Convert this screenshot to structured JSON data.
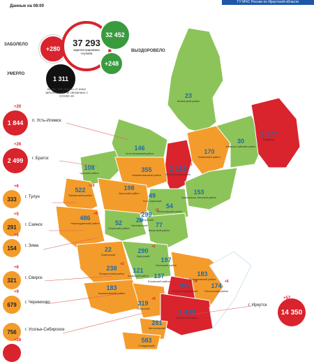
{
  "header": {
    "date_line": "Данные на 08:00",
    "ministry": "ГУ МЧС России по Иркутской области"
  },
  "summary": {
    "infected_label": "ЗАБОЛЕЛО",
    "infected_delta": "+280",
    "total": "37 293",
    "total_caption": "зарегистрировано случаев",
    "recovered_label": "ВЫЗДОРОВЕЛО",
    "recovered_total": "32 452",
    "recovered_delta": "+248",
    "died_label": "УМЕРЛО",
    "died_total": "1 311",
    "died_note": "из них 165 умерло от иных заболеваний, не связанных с COVID-19"
  },
  "side": [
    {
      "delta": "+20",
      "value": "1 844",
      "city": "п. Усть-Илимск",
      "color": "#d9232d"
    },
    {
      "delta": "+26",
      "value": "2 499",
      "city": "г. Братск",
      "color": "#d9232d"
    },
    {
      "delta": "+6",
      "value": "333",
      "city": "г. Тулун",
      "color": "#f39c2b"
    },
    {
      "delta": "+5",
      "value": "291",
      "city": "г. Саянск",
      "color": "#f39c2b"
    },
    {
      "delta": "+6",
      "value": "154",
      "city": "г. Зима",
      "color": "#f39c2b"
    },
    {
      "delta": "+6",
      "value": "321",
      "city": "г. Свирск",
      "color": "#f39c2b"
    },
    {
      "delta": "+9",
      "value": "679",
      "city": "г. Черемхово",
      "color": "#f39c2b"
    },
    {
      "delta": "",
      "value": "756",
      "city": "г. Усолье-Сибирское",
      "color": "#f39c2b"
    },
    {
      "delta": "+28",
      "value": "",
      "city": "",
      "color": "#d9232d"
    }
  ],
  "irkutsk": {
    "delta": "+57",
    "value": "14 350",
    "city": "г. Иркутск"
  },
  "regions": [
    {
      "value": "23",
      "name": "Катангский район"
    },
    {
      "value": "1 177",
      "name": "Бодайбо",
      "delta": "+18"
    },
    {
      "value": "146",
      "name": "Усть-Илимский район"
    },
    {
      "value": "2 186",
      "name": "Усть-Кутский район",
      "delta": "+13"
    },
    {
      "value": "170",
      "name": "Киренский район"
    },
    {
      "value": "30",
      "name": "Мамско-Чуйский район"
    },
    {
      "value": "108",
      "name": "Чунский район"
    },
    {
      "value": "355",
      "name": "Нижнеилимский район"
    },
    {
      "value": "153",
      "name": "Казачинско-Ленский район"
    },
    {
      "value": "522",
      "name": "Тайшетский район",
      "delta": "+10"
    },
    {
      "value": "198",
      "name": "Братский район"
    },
    {
      "value": "49",
      "name": "Усть-Удинский"
    },
    {
      "value": "54",
      "name": "Жигаловский район"
    },
    {
      "value": "486",
      "name": "Нижнеудинский район",
      "delta": "+6"
    },
    {
      "value": "299",
      "name": "Куйтунский",
      "delta": "+2"
    },
    {
      "value": "52",
      "name": "Тулунский район"
    },
    {
      "value": "28",
      "name": "Балаганский"
    },
    {
      "value": "77",
      "name": "Качугский район"
    },
    {
      "value": "22",
      "name": "Зиминский"
    },
    {
      "value": "290",
      "name": "Нукутский",
      "delta": "+2"
    },
    {
      "value": "197",
      "name": "Осинский район"
    },
    {
      "value": "238",
      "name": "Заларинский район",
      "delta": "+2"
    },
    {
      "value": "121",
      "name": "Аларский район"
    },
    {
      "value": "137",
      "name": "Боханский район"
    },
    {
      "value": "183",
      "name": "Баяндаевский район"
    },
    {
      "value": "996",
      "name": "Эхирит-Булагатский",
      "delta": "+8"
    },
    {
      "value": "174",
      "name": "Ольхонский район",
      "delta": "+6"
    },
    {
      "value": "183",
      "name": "Черемховский район"
    },
    {
      "value": "319",
      "name": "Усольский",
      "delta": "+9"
    },
    {
      "value": "2 419",
      "name": "Иркутский район",
      "delta": "+17"
    },
    {
      "value": "281",
      "name": "Шелеховский"
    },
    {
      "value": "583",
      "name": "Слюдянский"
    }
  ],
  "colors": {
    "green": "#8cc45a",
    "orange": "#f39c2b",
    "red": "#d9232d",
    "black": "#111111",
    "label_blue": "#1f6aa5"
  }
}
